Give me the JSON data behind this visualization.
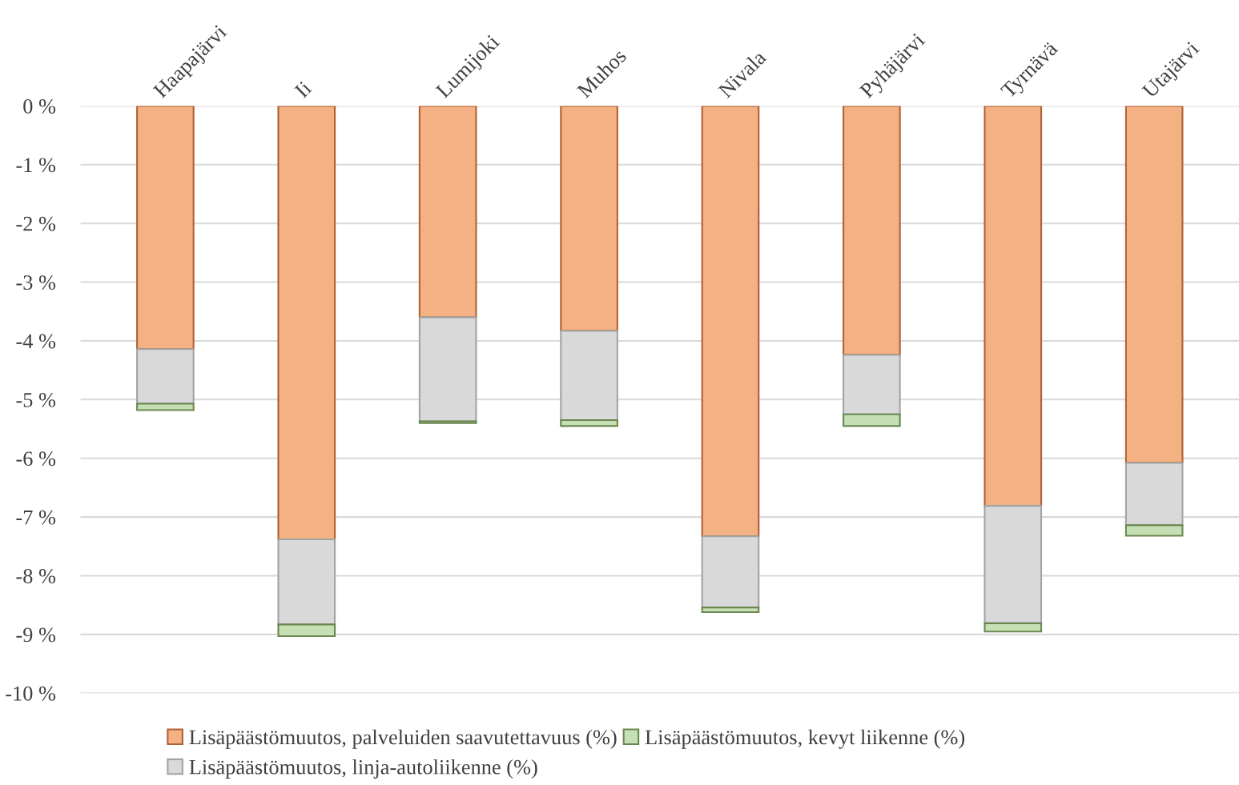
{
  "chart_data": {
    "type": "bar",
    "stacked": true,
    "categories": [
      "Haapajärvi",
      "Ii",
      "Lumijoki",
      "Muhos",
      "Nivala",
      "Pyhäjärvi",
      "Tyrnävä",
      "Utajärvi"
    ],
    "series": [
      {
        "name": "Lisäpäästömuutos, palveluiden saavutettavuus (%)",
        "color": "#f4b183",
        "values": [
          -4.14,
          -7.38,
          -3.6,
          -3.83,
          -7.33,
          -4.24,
          -6.81,
          -6.08
        ]
      },
      {
        "name": "Lisäpäästömuutos, linja-autoliikenne (%)",
        "color": "#d9d9d9",
        "values": [
          -0.93,
          -1.45,
          -1.77,
          -1.52,
          -1.21,
          -1.01,
          -2.0,
          -1.06
        ]
      },
      {
        "name": "Lisäpäästömuutos, kevyt liikenne (%)",
        "color": "#c5e0b4",
        "values": [
          -0.11,
          -0.2,
          -0.03,
          -0.1,
          -0.08,
          -0.2,
          -0.14,
          -0.18
        ]
      }
    ],
    "ylim": [
      -10,
      0
    ],
    "yticks": [
      {
        "value": 0,
        "label": "0 %"
      },
      {
        "value": -1,
        "label": "-1 %"
      },
      {
        "value": -2,
        "label": "-2 %"
      },
      {
        "value": -3,
        "label": "-3 %"
      },
      {
        "value": -4,
        "label": "-4 %"
      },
      {
        "value": -5,
        "label": "-5 %"
      },
      {
        "value": -6,
        "label": "-6 %"
      },
      {
        "value": -7,
        "label": "-7 %"
      },
      {
        "value": -8,
        "label": "-8 %"
      },
      {
        "value": -9,
        "label": "-9 %"
      },
      {
        "value": -10,
        "label": "-10 %"
      }
    ],
    "grid": "y",
    "legend": "bottom"
  }
}
